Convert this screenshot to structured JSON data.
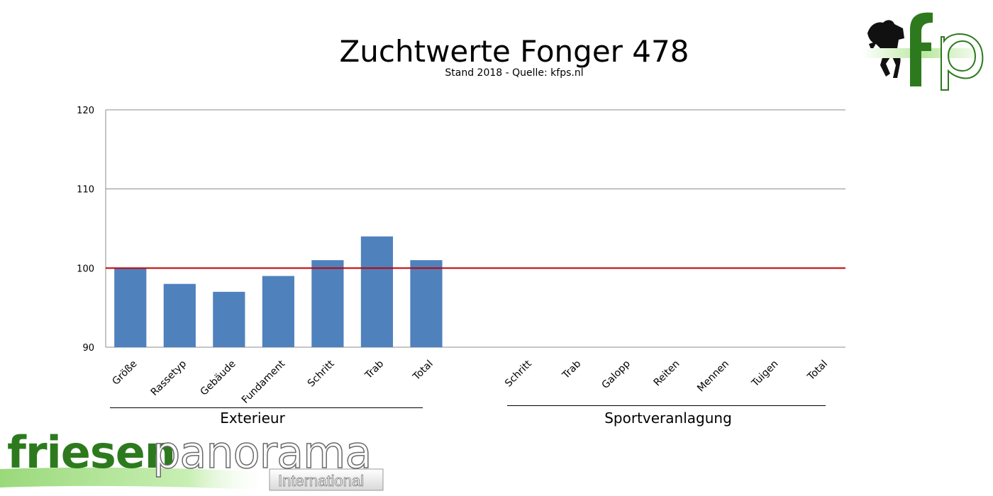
{
  "chart_data": {
    "type": "bar",
    "title": "Zuchtwerte Fonger 478",
    "subtitle": "Stand 2018 - Quelle: kfps.nl",
    "categories": [
      "Größe",
      "Rassetyp",
      "Gebäude",
      "Fundament",
      "Schritt",
      "Trab",
      "Total",
      "Schritt",
      "Trab",
      "Galopp",
      "Reiten",
      "Mennen",
      "Tuigen",
      "Total"
    ],
    "values": [
      100,
      98,
      97,
      99,
      101,
      104,
      101,
      null,
      null,
      null,
      null,
      null,
      null,
      null
    ],
    "groups": [
      {
        "label": "Exterieur",
        "categories": [
          "Größe",
          "Rassetyp",
          "Gebäude",
          "Fundament",
          "Schritt",
          "Trab",
          "Total"
        ]
      },
      {
        "label": "Sportveranlagung",
        "categories": [
          "Schritt",
          "Trab",
          "Galopp",
          "Reiten",
          "Mennen",
          "Tuigen",
          "Total"
        ]
      }
    ],
    "ylim": [
      90,
      120
    ],
    "yticks": [
      90,
      100,
      110,
      120
    ],
    "reference_line": {
      "value": 100,
      "color": "#c00000"
    },
    "bar_color": "#4f81bd",
    "grid": true,
    "xlabel": "",
    "ylabel": ""
  },
  "logos": {
    "top_right": "fp",
    "bottom_left_main": "friesen",
    "bottom_left_accent": "panorama",
    "bottom_left_sub": "International"
  },
  "colors": {
    "logo_green": "#2d7a1e",
    "logo_light_green": "#8ed36b"
  }
}
